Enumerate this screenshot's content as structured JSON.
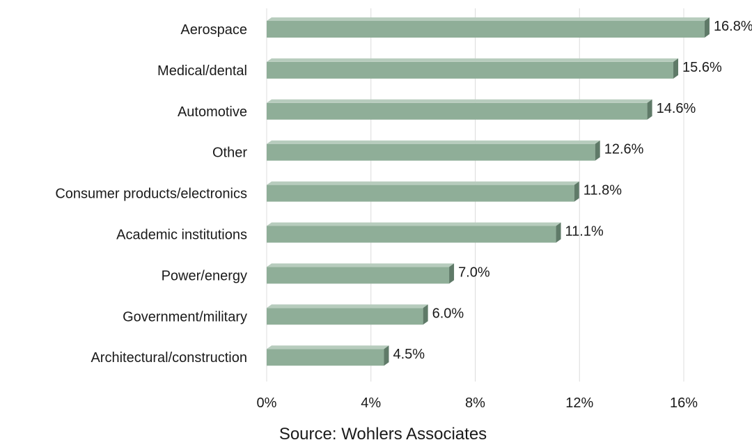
{
  "chart_data": {
    "type": "bar",
    "orientation": "horizontal",
    "categories": [
      "Aerospace",
      "Medical/dental",
      "Automotive",
      "Other",
      "Consumer products/electronics",
      "Academic institutions",
      "Power/energy",
      "Government/military",
      "Architectural/construction"
    ],
    "values": [
      16.8,
      15.6,
      14.6,
      12.6,
      11.8,
      11.1,
      7.0,
      6.0,
      4.5
    ],
    "value_labels": [
      "16.8%",
      "15.6%",
      "14.6%",
      "12.6%",
      "11.8%",
      "11.1%",
      "7.0%",
      "6.0%",
      "4.5%"
    ],
    "xlim": [
      0,
      16
    ],
    "x_ticks": [
      0,
      4,
      8,
      12,
      16
    ],
    "x_tick_labels": [
      "0%",
      "4%",
      "8%",
      "12%",
      "16%"
    ],
    "grid": true,
    "bar_color": "#8fae98",
    "bar_top_color": "#b7ccbd",
    "bar_end_color": "#5f7a68",
    "source": "Source: Wohlers Associates"
  }
}
